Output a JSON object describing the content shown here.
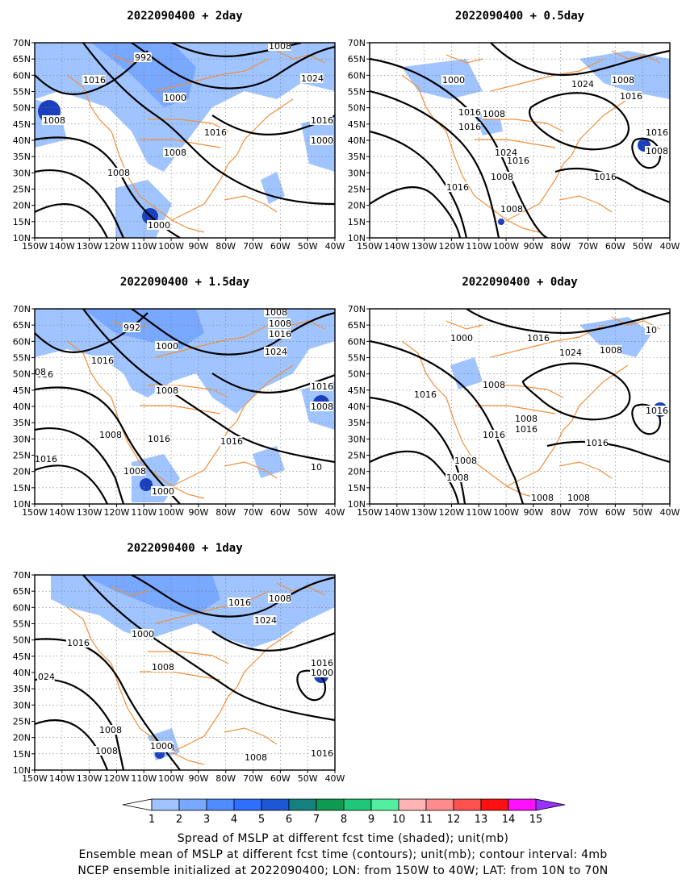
{
  "panels": [
    {
      "title": "2022090400  +  2day",
      "key": "p2"
    },
    {
      "title": "2022090400  +  0.5day",
      "key": "p05"
    },
    {
      "title": "2022090400  +  1.5day",
      "key": "p15"
    },
    {
      "title": "2022090400  +  0day",
      "key": "p0"
    },
    {
      "title": "2022090400  +  1day",
      "key": "p1"
    }
  ],
  "axes": {
    "lat_ticks": [
      "70N",
      "65N",
      "60N",
      "55N",
      "50N",
      "45N",
      "40N",
      "35N",
      "30N",
      "25N",
      "20N",
      "15N",
      "10N"
    ],
    "lon_ticks": [
      "150W",
      "140W",
      "130W",
      "120W",
      "110W",
      "100W",
      "90W",
      "80W",
      "70W",
      "60W",
      "50W",
      "40W"
    ],
    "lat_range": [
      10,
      70
    ],
    "lon_range": [
      -150,
      -40
    ],
    "grid": "dotted"
  },
  "colorbar": {
    "labels": [
      "1",
      "2",
      "3",
      "4",
      "5",
      "6",
      "7",
      "8",
      "9",
      "10",
      "11",
      "12",
      "13",
      "14",
      "15"
    ],
    "colors": [
      "#ffffff",
      "#a0c4ff",
      "#78a8ff",
      "#4f8cff",
      "#2f6fff",
      "#1c57d6",
      "#158080",
      "#0e9a50",
      "#1ec878",
      "#50f0a0",
      "#ffb4b4",
      "#ff8c8c",
      "#ff5050",
      "#ff1010",
      "#ff10ff",
      "#9a30ff"
    ]
  },
  "colors": {
    "contour": "#000000",
    "coast": "#f0903c",
    "spread_light": "#a0c4ff",
    "spread_mid": "#78a8ff",
    "spread_dark": "#1a3fbf"
  },
  "contour_labels": {
    "p2": [
      "992",
      "1008",
      "1016",
      "1000",
      "1024",
      "1008",
      "1016",
      "1008",
      "1008",
      "1016",
      "1000",
      "1000"
    ],
    "p05": [
      "1000",
      "1024",
      "1008",
      "1016",
      "1016",
      "1008",
      "1016",
      "1024",
      "1016",
      "1016",
      "1008",
      "1008",
      "1016",
      "1016",
      "1008"
    ],
    "p15": [
      "992",
      "1008",
      "1016",
      "1000",
      "1024",
      "1016",
      "1008",
      "1008",
      "1016",
      "1016",
      "1016",
      "1008",
      "1000",
      "1016",
      "1008",
      "016",
      "08",
      "1008",
      "10"
    ],
    "p0": [
      "1000",
      "1016",
      "1008",
      "1024",
      "1008",
      "1016",
      "1008",
      "1016",
      "1016",
      "1016",
      "1016",
      "1008",
      "1008",
      "1008",
      "1008",
      "10"
    ],
    "p1": [
      "1000",
      "1016",
      "1008",
      "1016",
      "1024",
      "1008",
      "1016",
      "1000",
      "1008",
      "1008",
      "1008",
      "1008",
      "1000",
      "1008",
      "024",
      "1016"
    ]
  },
  "caption": [
    "Spread of MSLP at different fcst time (shaded); unit(mb)",
    "Ensemble mean of MSLP at different fcst time (contours); unit(mb); contour interval: 4mb",
    "NCEP ensemble initialized at 2022090400; LON: from 150W to 40W; LAT: from 10N to 70N"
  ]
}
